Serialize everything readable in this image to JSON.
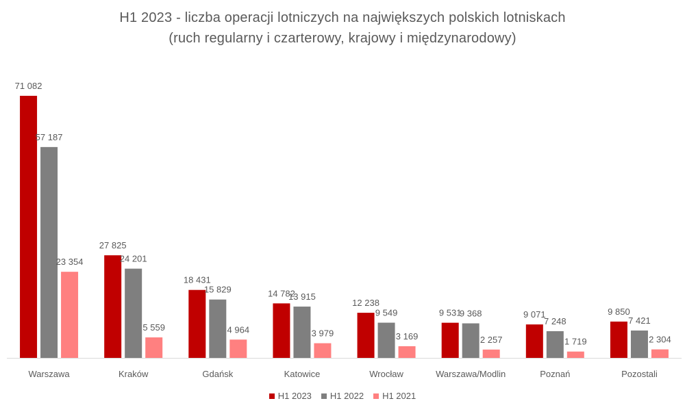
{
  "title": "H1 2023 - liczba operacji lotniczych na największych polskich lotniskach",
  "subtitle": "(ruch regularny i czarterowy, krajowy i międzynarodowy)",
  "colors": {
    "H1 2023": "#c00000",
    "H1 2022": "#7f7f7f",
    "H1 2021": "#ff8080",
    "axis": "#d9d9d9",
    "text": "#595959"
  },
  "chart_data": {
    "type": "bar",
    "title": "H1 2023 - liczba operacji lotniczych na największych polskich lotniskach",
    "subtitle": "(ruch regularny i czarterowy, krajowy i międzynarodowy)",
    "xlabel": "",
    "ylabel": "",
    "ylim": [
      0,
      71082
    ],
    "grid": false,
    "legend_position": "bottom",
    "categories": [
      "Warszawa",
      "Kraków",
      "Gdańsk",
      "Katowice",
      "Wrocław",
      "Warszawa/Modlin",
      "Poznań",
      "Pozostali"
    ],
    "series": [
      {
        "name": "H1 2023",
        "values": [
          71082,
          27825,
          18431,
          14782,
          12238,
          9531,
          9071,
          9850
        ],
        "labels": [
          "71 082",
          "27 825",
          "18 431",
          "14 782",
          "12 238",
          "9 531",
          "9 071",
          "9 850"
        ]
      },
      {
        "name": "H1 2022",
        "values": [
          57187,
          24201,
          15829,
          13915,
          9549,
          9368,
          7248,
          7421
        ],
        "labels": [
          "57 187",
          "24 201",
          "15 829",
          "13 915",
          "9 549",
          "9 368",
          "7 248",
          "7 421"
        ]
      },
      {
        "name": "H1 2021",
        "values": [
          23354,
          5559,
          4964,
          3979,
          3169,
          2257,
          1719,
          2304
        ],
        "labels": [
          "23 354",
          "5 559",
          "4 964",
          "3 979",
          "3 169",
          "2 257",
          "1 719",
          "2 304"
        ]
      }
    ]
  }
}
